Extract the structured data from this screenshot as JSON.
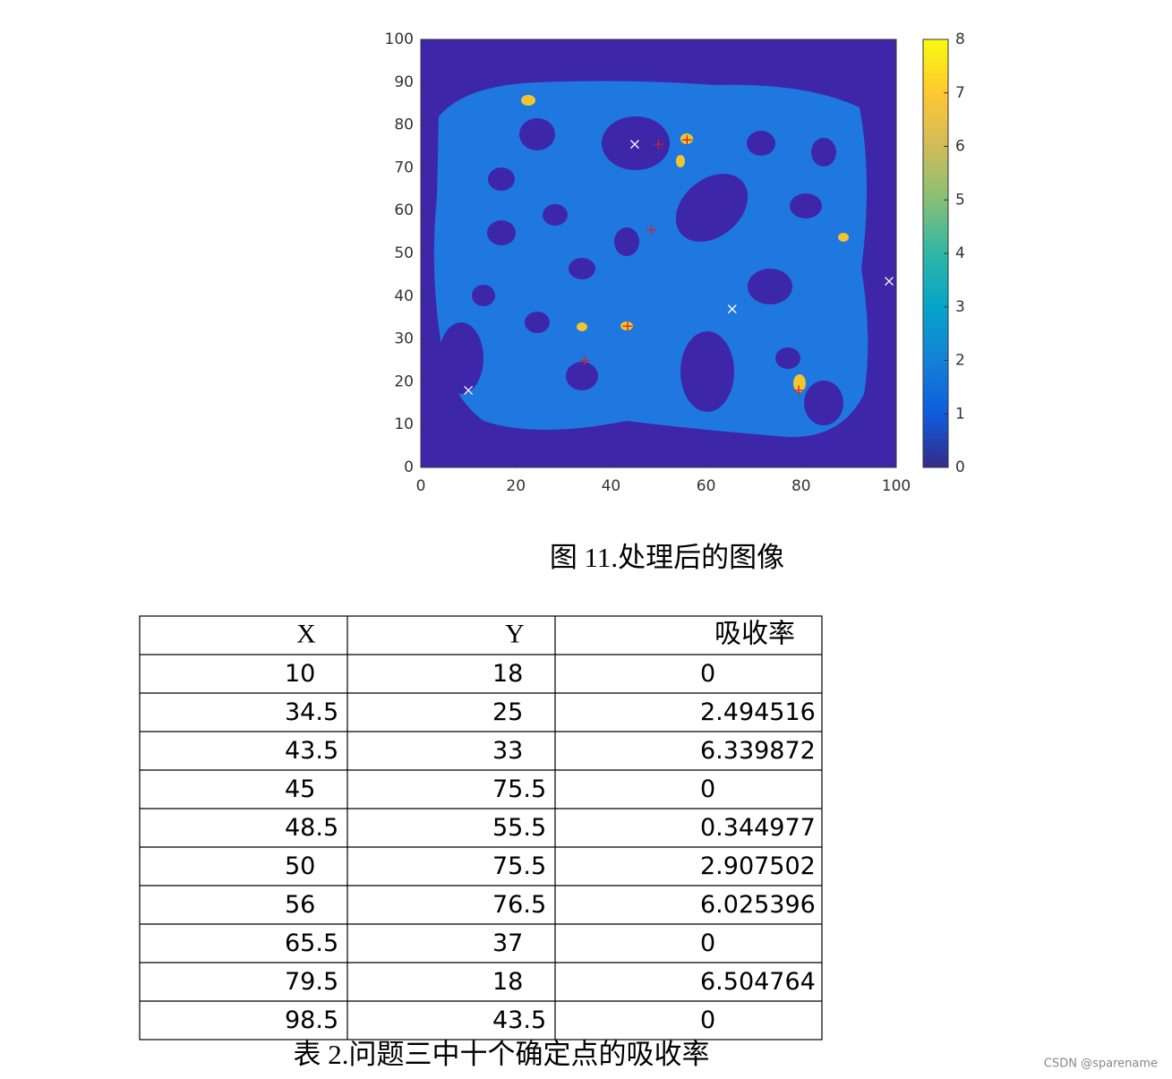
{
  "figure": {
    "chart_data": {
      "type": "heatmap",
      "xlim": [
        0,
        100
      ],
      "ylim": [
        0,
        100
      ],
      "xticks": [
        0,
        20,
        40,
        60,
        80,
        100
      ],
      "yticks": [
        0,
        10,
        20,
        30,
        40,
        50,
        60,
        70,
        80,
        90,
        100
      ],
      "colorbar": {
        "lim": [
          0,
          8
        ],
        "ticks": [
          0,
          1,
          2,
          3,
          4,
          5,
          6,
          7,
          8
        ],
        "colormap": [
          "#352a87",
          "#0f5cdd",
          "#1481d6",
          "#06a4ca",
          "#2eb7a4",
          "#87bf77",
          "#d1bb59",
          "#fec832",
          "#f9fb0e"
        ]
      },
      "zero_marker_color": "#ffffff",
      "marker_color": "#d62020"
    },
    "caption": "图 11.处理后的图像"
  },
  "table": {
    "header": [
      "X",
      "Y",
      "吸收率"
    ],
    "rows": [
      [
        10,
        18,
        0
      ],
      [
        34.5,
        25,
        2.494516
      ],
      [
        43.5,
        33,
        6.339872
      ],
      [
        45,
        75.5,
        0
      ],
      [
        48.5,
        55.5,
        0.344977
      ],
      [
        50,
        75.5,
        2.907502
      ],
      [
        56,
        76.5,
        6.025396
      ],
      [
        65.5,
        37,
        0
      ],
      [
        79.5,
        18,
        6.504764
      ],
      [
        98.5,
        43.5,
        0
      ]
    ],
    "caption": "表 2.问题三中十个确定点的吸收率"
  },
  "watermark": "CSDN @sparename"
}
